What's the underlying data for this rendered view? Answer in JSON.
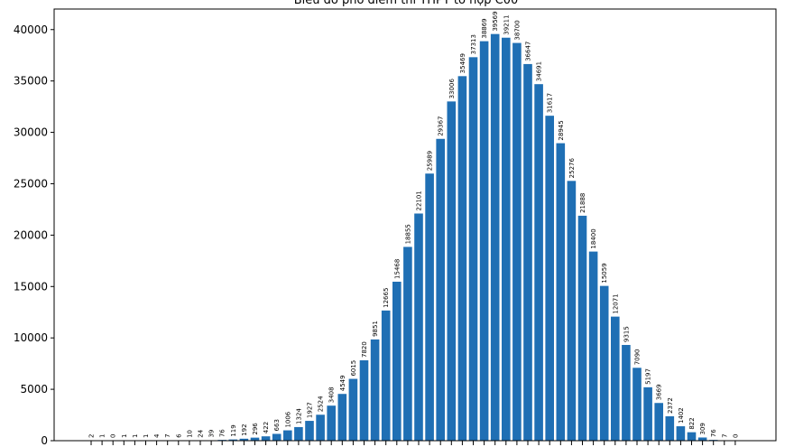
{
  "chart_data": {
    "type": "bar",
    "title": "Biểu đồ phổ điểm thi THPT tổ hợp C00",
    "xlabel": "",
    "ylabel": "",
    "ylim": [
      0,
      42000
    ],
    "yticks": [
      0,
      5000,
      10000,
      15000,
      20000,
      25000,
      30000,
      35000,
      40000
    ],
    "bar_color": "#1f6fb4",
    "values": [
      2,
      1,
      0,
      1,
      1,
      1,
      4,
      7,
      6,
      10,
      24,
      39,
      76,
      119,
      192,
      296,
      422,
      663,
      1006,
      1324,
      1927,
      2524,
      3408,
      4549,
      6015,
      7820,
      9851,
      12665,
      15468,
      18855,
      22101,
      25989,
      29367,
      33006,
      35469,
      37313,
      38869,
      39569,
      39211,
      38700,
      36647,
      34691,
      31617,
      28945,
      25276,
      21888,
      18400,
      15059,
      12071,
      9315,
      7090,
      5197,
      3669,
      2372,
      1402,
      822,
      309,
      76,
      7,
      0
    ],
    "data_labels": [
      "2",
      "1",
      "0",
      "1",
      "1",
      "1",
      "4",
      "7",
      "6",
      "10",
      "24",
      "39",
      "76",
      "119",
      "192",
      "296",
      "422",
      "663",
      "1006",
      "1324",
      "1927",
      "2524",
      "3408",
      "4549",
      "6015",
      "7820",
      "9851",
      "12665",
      "15468",
      "18855",
      "22101",
      "25989",
      "29367",
      "33006",
      "35469",
      "37313",
      "38869",
      "39569",
      "39211",
      "38700",
      "36647",
      "34691",
      "31617",
      "28945",
      "25276",
      "21888",
      "18400",
      "15059",
      "12071",
      "9315",
      "7090",
      "5197",
      "3669",
      "2372",
      "1402",
      "822",
      "309",
      "76",
      "7",
      "0"
    ]
  }
}
